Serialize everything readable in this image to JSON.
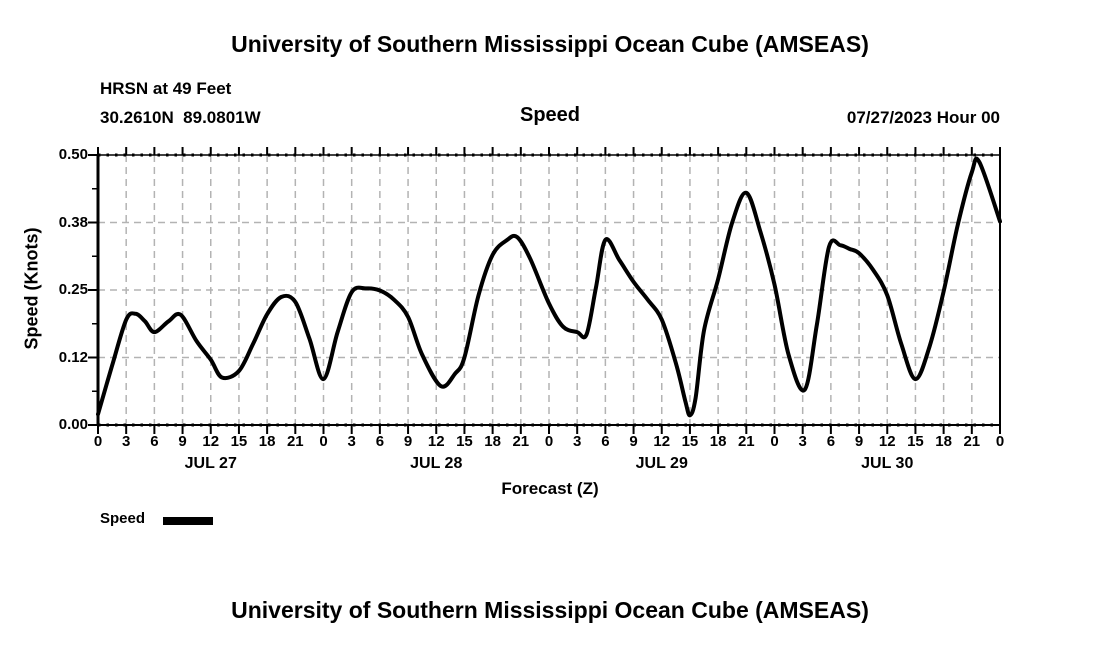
{
  "page": {
    "top_title": "University of Southern Mississippi Ocean Cube (AMSEAS)",
    "bottom_title": "University of Southern Mississippi Ocean Cube (AMSEAS)"
  },
  "header": {
    "station_name": "HRSN at 49 Feet",
    "station_coords": "30.2610N  89.0801W",
    "subtitle": "Speed",
    "datetime": "07/27/2023 Hour 00"
  },
  "chart_data": {
    "type": "line",
    "title": "Speed",
    "xlabel": "Forecast (Z)",
    "ylabel": "Speed (Knots)",
    "ylim": [
      0.0,
      0.5
    ],
    "xlim_hours": [
      0,
      96
    ],
    "grid": "dashed-gray, vertical every 3 hours, horizontal every 0.125",
    "legend": {
      "label": "Speed",
      "swatch_color": "#000000",
      "position": "bottom-left"
    },
    "colors": {
      "line": "#000000",
      "grid": "#b3b3b3",
      "frame": "#000000"
    },
    "y_ticks": [
      {
        "v": 0.0,
        "label": "0.00"
      },
      {
        "v": 0.125,
        "label": "0.12"
      },
      {
        "v": 0.25,
        "label": "0.25"
      },
      {
        "v": 0.375,
        "label": "0.38"
      },
      {
        "v": 0.5,
        "label": "0.50"
      }
    ],
    "x_ticks": [
      {
        "h": 0,
        "label": "0"
      },
      {
        "h": 3,
        "label": "3"
      },
      {
        "h": 6,
        "label": "6"
      },
      {
        "h": 9,
        "label": "9"
      },
      {
        "h": 12,
        "label": "12"
      },
      {
        "h": 15,
        "label": "15"
      },
      {
        "h": 18,
        "label": "18"
      },
      {
        "h": 21,
        "label": "21"
      },
      {
        "h": 24,
        "label": "0"
      },
      {
        "h": 27,
        "label": "3"
      },
      {
        "h": 30,
        "label": "6"
      },
      {
        "h": 33,
        "label": "9"
      },
      {
        "h": 36,
        "label": "12"
      },
      {
        "h": 39,
        "label": "15"
      },
      {
        "h": 42,
        "label": "18"
      },
      {
        "h": 45,
        "label": "21"
      },
      {
        "h": 48,
        "label": "0"
      },
      {
        "h": 51,
        "label": "3"
      },
      {
        "h": 54,
        "label": "6"
      },
      {
        "h": 57,
        "label": "9"
      },
      {
        "h": 60,
        "label": "12"
      },
      {
        "h": 63,
        "label": "15"
      },
      {
        "h": 66,
        "label": "18"
      },
      {
        "h": 69,
        "label": "21"
      },
      {
        "h": 72,
        "label": "0"
      },
      {
        "h": 75,
        "label": "3"
      },
      {
        "h": 78,
        "label": "6"
      },
      {
        "h": 81,
        "label": "9"
      },
      {
        "h": 84,
        "label": "12"
      },
      {
        "h": 87,
        "label": "15"
      },
      {
        "h": 90,
        "label": "18"
      },
      {
        "h": 93,
        "label": "21"
      },
      {
        "h": 96,
        "label": "0"
      }
    ],
    "day_labels": [
      {
        "label": "JUL 27",
        "center_hour": 12
      },
      {
        "label": "JUL 28",
        "center_hour": 36
      },
      {
        "label": "JUL 29",
        "center_hour": 60
      },
      {
        "label": "JUL 30",
        "center_hour": 84
      }
    ],
    "series": [
      {
        "name": "Speed",
        "units": "Knots",
        "points_hour_knots": [
          [
            0,
            0.02
          ],
          [
            1.5,
            0.11
          ],
          [
            3,
            0.195
          ],
          [
            4,
            0.206
          ],
          [
            5,
            0.192
          ],
          [
            6,
            0.172
          ],
          [
            7.5,
            0.192
          ],
          [
            8.8,
            0.204
          ],
          [
            10.5,
            0.155
          ],
          [
            12,
            0.121
          ],
          [
            13.2,
            0.088
          ],
          [
            15,
            0.1
          ],
          [
            16.5,
            0.15
          ],
          [
            18,
            0.205
          ],
          [
            19.5,
            0.237
          ],
          [
            21,
            0.228
          ],
          [
            22.5,
            0.16
          ],
          [
            24,
            0.085
          ],
          [
            25.5,
            0.172
          ],
          [
            27,
            0.246
          ],
          [
            28.5,
            0.253
          ],
          [
            30,
            0.249
          ],
          [
            31.5,
            0.232
          ],
          [
            33,
            0.2
          ],
          [
            34.5,
            0.13
          ],
          [
            36.5,
            0.072
          ],
          [
            38,
            0.095
          ],
          [
            39,
            0.125
          ],
          [
            40.5,
            0.24
          ],
          [
            42,
            0.315
          ],
          [
            43.5,
            0.342
          ],
          [
            44.6,
            0.348
          ],
          [
            46,
            0.308
          ],
          [
            48,
            0.225
          ],
          [
            49.5,
            0.182
          ],
          [
            51,
            0.172
          ],
          [
            52,
            0.168
          ],
          [
            53,
            0.255
          ],
          [
            54,
            0.343
          ],
          [
            55.5,
            0.305
          ],
          [
            57,
            0.265
          ],
          [
            58.5,
            0.232
          ],
          [
            60,
            0.195
          ],
          [
            61.5,
            0.115
          ],
          [
            62.5,
            0.045
          ],
          [
            63,
            0.018
          ],
          [
            63.6,
            0.05
          ],
          [
            64.5,
            0.175
          ],
          [
            66,
            0.27
          ],
          [
            67.5,
            0.375
          ],
          [
            69,
            0.43
          ],
          [
            70.5,
            0.358
          ],
          [
            72,
            0.26
          ],
          [
            73.5,
            0.13
          ],
          [
            75.2,
            0.065
          ],
          [
            76.5,
            0.185
          ],
          [
            77.8,
            0.33
          ],
          [
            79,
            0.333
          ],
          [
            80,
            0.326
          ],
          [
            81,
            0.318
          ],
          [
            82.5,
            0.287
          ],
          [
            84,
            0.24
          ],
          [
            85.5,
            0.15
          ],
          [
            87,
            0.085
          ],
          [
            88.5,
            0.145
          ],
          [
            90,
            0.247
          ],
          [
            91.5,
            0.37
          ],
          [
            93,
            0.468
          ],
          [
            93.8,
            0.487
          ],
          [
            96,
            0.377
          ]
        ]
      }
    ]
  }
}
